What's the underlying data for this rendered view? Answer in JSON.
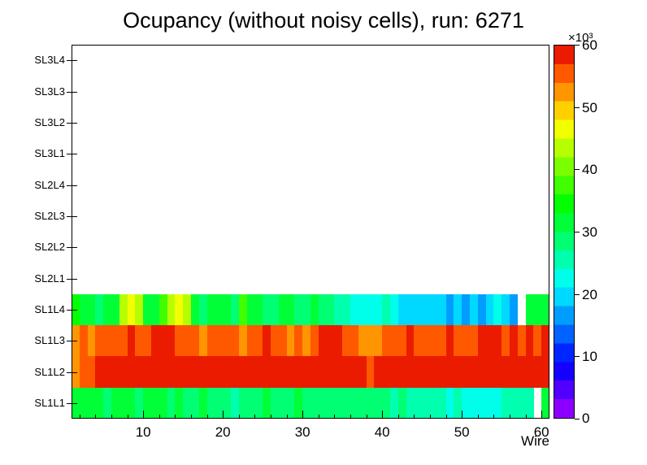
{
  "chart_data": {
    "type": "heatmap",
    "title": "Ocupancy (without noisy cells), run: 6271",
    "xlabel": "Wire",
    "x_range": [
      1,
      61
    ],
    "x_ticks": [
      10,
      20,
      30,
      40,
      50,
      60
    ],
    "rows": [
      "SL1L1",
      "SL1L2",
      "SL1L3",
      "SL1L4",
      "SL2L1",
      "SL2L2",
      "SL2L3",
      "SL2L4",
      "SL3L1",
      "SL3L2",
      "SL3L3",
      "SL3L4"
    ],
    "empty_rows": [
      "SL2L1",
      "SL2L2",
      "SL2L3",
      "SL2L4",
      "SL3L1",
      "SL3L2",
      "SL3L3",
      "SL3L4"
    ],
    "values_unit": "counts x 1000",
    "colorbar": {
      "label": "×10³",
      "ticks": [
        0,
        10,
        20,
        30,
        40,
        50,
        60
      ],
      "min": 0,
      "max": 60,
      "palette": "rainbow"
    },
    "series": [
      {
        "row": "SL1L4",
        "values": [
          33,
          31,
          30,
          29,
          30,
          32,
          43,
          45,
          42,
          31,
          30,
          36,
          44,
          45,
          42,
          31,
          29,
          30,
          32,
          30,
          29,
          38,
          32,
          30,
          29,
          28,
          30,
          31,
          29,
          28,
          30,
          29,
          27,
          25,
          24,
          22,
          23,
          21,
          22,
          24,
          23,
          20,
          19,
          18,
          18,
          19,
          18,
          17,
          18,
          17,
          18,
          17,
          19,
          21,
          18,
          17,
          0,
          30,
          32,
          31
        ]
      },
      {
        "row": "SL1L3",
        "values": [
          53,
          54,
          53,
          54,
          55,
          54,
          55,
          57,
          56,
          55,
          57,
          58,
          57,
          55,
          56,
          54,
          53,
          54,
          55,
          56,
          54,
          53,
          55,
          56,
          57,
          55,
          54,
          53,
          54,
          53,
          55,
          57,
          58,
          57,
          56,
          55,
          53,
          52,
          53,
          54,
          55,
          56,
          57,
          55,
          54,
          55,
          56,
          57,
          56,
          55,
          56,
          57,
          58,
          57,
          56,
          57,
          56,
          57,
          56,
          57
        ]
      },
      {
        "row": "SL1L2",
        "values": [
          52,
          55,
          56,
          57,
          58,
          60,
          59,
          60,
          60,
          59,
          60,
          60,
          60,
          59,
          58,
          57,
          58,
          59,
          58,
          57,
          58,
          59,
          60,
          58,
          57,
          58,
          59,
          60,
          60,
          59,
          58,
          60,
          60,
          59,
          58,
          57,
          58,
          56,
          57,
          58,
          59,
          60,
          58,
          59,
          60,
          58,
          57,
          58,
          59,
          58,
          57,
          58,
          59,
          58,
          57,
          58,
          59,
          58,
          57,
          60
        ]
      },
      {
        "row": "SL1L1",
        "values": [
          32,
          30,
          31,
          30,
          29,
          30,
          31,
          30,
          29,
          30,
          31,
          30,
          29,
          30,
          28,
          29,
          30,
          29,
          28,
          27,
          26,
          27,
          28,
          29,
          30,
          29,
          28,
          29,
          30,
          29,
          28,
          29,
          28,
          27,
          28,
          29,
          28,
          27,
          28,
          27,
          26,
          27,
          26,
          25,
          26,
          25,
          24,
          23,
          24,
          23,
          22,
          23,
          22,
          23,
          24,
          25,
          26,
          24,
          0,
          31
        ]
      }
    ]
  }
}
